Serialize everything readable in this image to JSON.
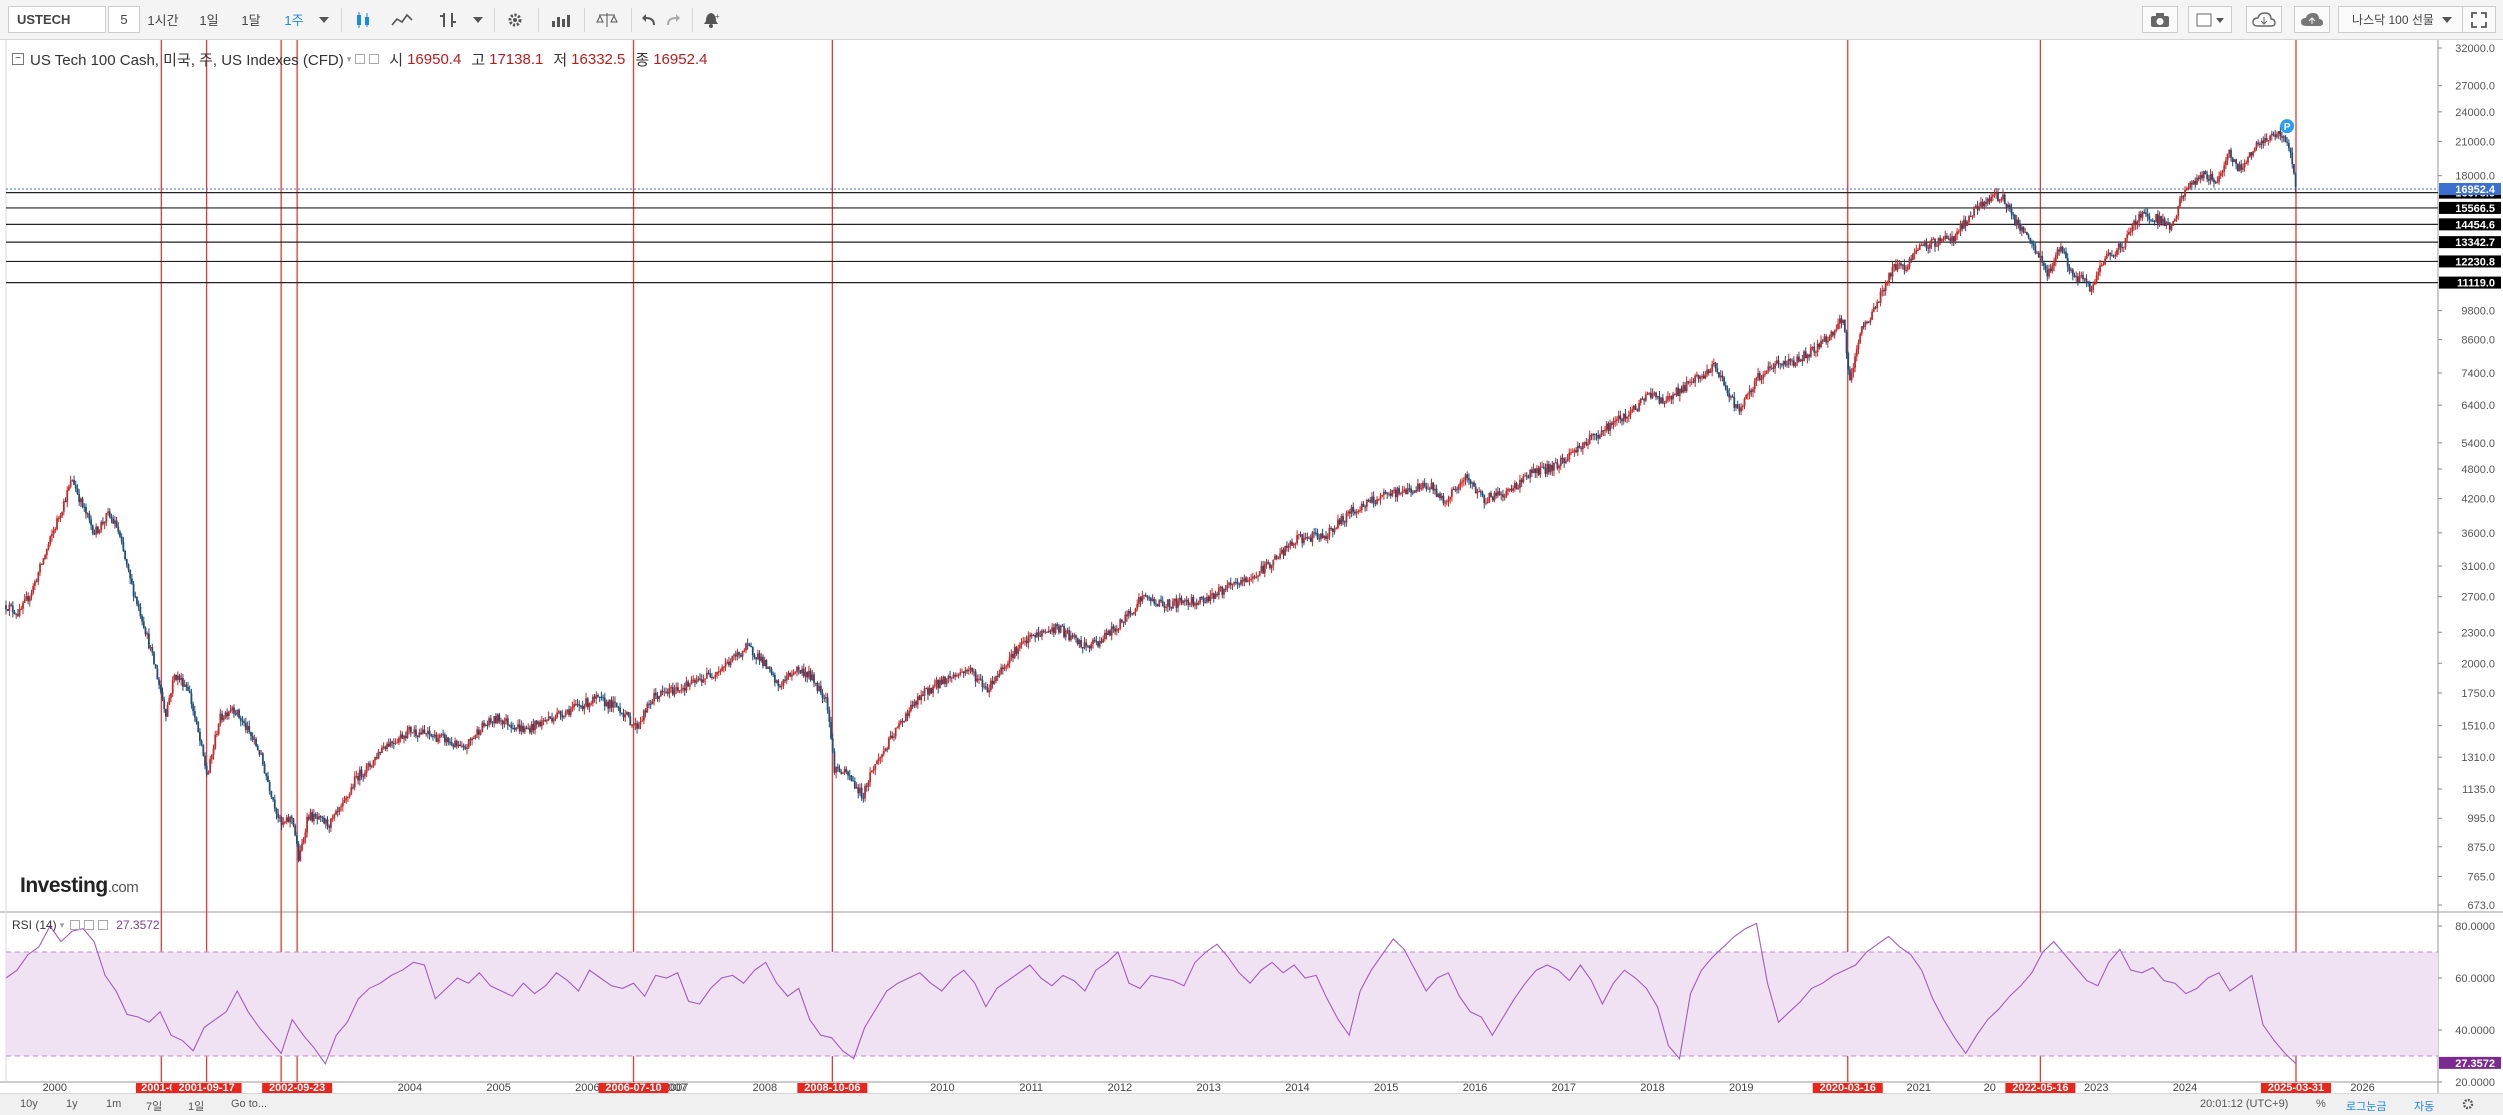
{
  "toolbar": {
    "symbol": "USTECH",
    "interval_value": "5",
    "timeframes": [
      "1시간",
      "1일",
      "1달",
      "1주"
    ],
    "active_timeframe": "1주",
    "contract_label": "나스닥 100 선물",
    "icons": [
      "candles-icon",
      "line-chart-icon",
      "dropdown-caret-icon",
      "indicators-icon",
      "dropdown-caret-icon",
      "settings-gear-icon",
      "bar-compare-icon",
      "scale-icon",
      "undo-icon",
      "redo-icon",
      "alert-bell-icon"
    ],
    "right_icons": [
      "camera-icon",
      "layout-square-icon",
      "dropdown-caret-icon",
      "cloud-load-icon",
      "cloud-save-icon",
      "dropdown-caret-icon",
      "fullscreen-icon"
    ]
  },
  "legend": {
    "name": "US Tech 100 Cash, 미국, 주, US Indexes (CFD)",
    "open_label": "시",
    "open": "16950.4",
    "high_label": "고",
    "high": "17138.1",
    "low_label": "저",
    "low": "16332.5",
    "close_label": "종",
    "close": "16952.4"
  },
  "logo": {
    "brand": "Investing",
    "domain": ".com"
  },
  "rsi_legend": {
    "name": "RSI (14)",
    "value": "27.3572"
  },
  "colors": {
    "up_candle": "#c62828",
    "down_candle": "#1f4e79",
    "vertical_lines": "#e53935",
    "rsi_line": "#a05cc0",
    "rsi_band": "#f1e2f3",
    "last_price_tag": "#3d6fd1",
    "level_tag": "#000000",
    "rsi_tag": "#7b2a8f"
  },
  "chart_data": [
    {
      "type": "line",
      "subtype": "candlestick",
      "title": "US Tech 100 Cash, 미국, 주, US Indexes (CFD)",
      "y_scale": "log",
      "ylim": [
        673,
        32000
      ],
      "xlim": [
        1999.45,
        2026.85
      ],
      "ytick_labels": [
        "32000.0",
        "27000.0",
        "24000.0",
        "21000.0",
        "18000.0",
        "9800.0",
        "8600.0",
        "7400.0",
        "6400.0",
        "5400.0",
        "4800.0",
        "4200.0",
        "3600.0",
        "3100.0",
        "2700.0",
        "2300.0",
        "2000.0",
        "1750.0",
        "1510.0",
        "1310.0",
        "1135.0",
        "995.0",
        "875.0",
        "765.0",
        "673.0"
      ],
      "ytick_values": [
        32000,
        27000,
        24000,
        21000,
        18000,
        9800,
        8600,
        7400,
        6400,
        5400,
        4800,
        4200,
        3600,
        3100,
        2700,
        2300,
        2000,
        1750,
        1510,
        1310,
        1135,
        995,
        875,
        765,
        673
      ],
      "year_labels": [
        "2000",
        "2004",
        "2005",
        "2006",
        "2007",
        "2008",
        "2009",
        "2010",
        "2011",
        "2012",
        "2013",
        "2014",
        "2015",
        "2016",
        "2017",
        "2018",
        "2019",
        "2021",
        "2023",
        "2024",
        "2026"
      ],
      "year_values": [
        2000,
        2004,
        2005,
        2006,
        2007,
        2008,
        2009,
        2010,
        2011,
        2012,
        2013,
        2014,
        2015,
        2016,
        2017,
        2018,
        2019,
        2021,
        2023,
        2024,
        2026
      ],
      "price_path": [
        [
          1999.45,
          2600
        ],
        [
          1999.6,
          2500
        ],
        [
          1999.75,
          2800
        ],
        [
          1999.9,
          3300
        ],
        [
          2000.05,
          3900
        ],
        [
          2000.2,
          4600
        ],
        [
          2000.3,
          4100
        ],
        [
          2000.45,
          3600
        ],
        [
          2000.6,
          3900
        ],
        [
          2000.7,
          3700
        ],
        [
          2000.85,
          2900
        ],
        [
          2001.0,
          2400
        ],
        [
          2001.15,
          1900
        ],
        [
          2001.25,
          1600
        ],
        [
          2001.35,
          1900
        ],
        [
          2001.5,
          1800
        ],
        [
          2001.6,
          1500
        ],
        [
          2001.72,
          1200
        ],
        [
          2001.85,
          1550
        ],
        [
          2002.0,
          1650
        ],
        [
          2002.15,
          1500
        ],
        [
          2002.3,
          1350
        ],
        [
          2002.45,
          1100
        ],
        [
          2002.55,
          960
        ],
        [
          2002.68,
          1000
        ],
        [
          2002.75,
          820
        ],
        [
          2002.85,
          1010
        ],
        [
          2003.0,
          980
        ],
        [
          2003.1,
          970
        ],
        [
          2003.25,
          1050
        ],
        [
          2003.4,
          1200
        ],
        [
          2003.55,
          1260
        ],
        [
          2003.7,
          1380
        ],
        [
          2003.85,
          1420
        ],
        [
          2004.0,
          1480
        ],
        [
          2004.2,
          1450
        ],
        [
          2004.4,
          1420
        ],
        [
          2004.6,
          1350
        ],
        [
          2004.8,
          1500
        ],
        [
          2005.0,
          1560
        ],
        [
          2005.3,
          1480
        ],
        [
          2005.6,
          1570
        ],
        [
          2005.9,
          1650
        ],
        [
          2006.1,
          1700
        ],
        [
          2006.35,
          1640
        ],
        [
          2006.55,
          1500
        ],
        [
          2006.75,
          1720
        ],
        [
          2007.0,
          1780
        ],
        [
          2007.2,
          1830
        ],
        [
          2007.5,
          1950
        ],
        [
          2007.8,
          2150
        ],
        [
          2007.95,
          2050
        ],
        [
          2008.15,
          1800
        ],
        [
          2008.35,
          1950
        ],
        [
          2008.5,
          1900
        ],
        [
          2008.7,
          1700
        ],
        [
          2008.78,
          1250
        ],
        [
          2008.95,
          1200
        ],
        [
          2009.1,
          1100
        ],
        [
          2009.2,
          1230
        ],
        [
          2009.4,
          1400
        ],
        [
          2009.6,
          1600
        ],
        [
          2009.8,
          1750
        ],
        [
          2010.0,
          1850
        ],
        [
          2010.3,
          1950
        ],
        [
          2010.5,
          1780
        ],
        [
          2010.8,
          2100
        ],
        [
          2011.0,
          2250
        ],
        [
          2011.3,
          2350
        ],
        [
          2011.6,
          2150
        ],
        [
          2011.75,
          2200
        ],
        [
          2012.0,
          2380
        ],
        [
          2012.25,
          2700
        ],
        [
          2012.5,
          2600
        ],
        [
          2012.75,
          2650
        ],
        [
          2012.9,
          2650
        ],
        [
          2013.2,
          2800
        ],
        [
          2013.5,
          2950
        ],
        [
          2013.75,
          3200
        ],
        [
          2014.0,
          3500
        ],
        [
          2014.3,
          3550
        ],
        [
          2014.6,
          3950
        ],
        [
          2014.9,
          4200
        ],
        [
          2015.2,
          4350
        ],
        [
          2015.5,
          4450
        ],
        [
          2015.65,
          4150
        ],
        [
          2015.9,
          4600
        ],
        [
          2016.1,
          4200
        ],
        [
          2016.4,
          4350
        ],
        [
          2016.6,
          4700
        ],
        [
          2016.9,
          4850
        ],
        [
          2017.2,
          5350
        ],
        [
          2017.5,
          5800
        ],
        [
          2017.8,
          6300
        ],
        [
          2018.0,
          6800
        ],
        [
          2018.1,
          6500
        ],
        [
          2018.4,
          7000
        ],
        [
          2018.7,
          7600
        ],
        [
          2018.85,
          6800
        ],
        [
          2018.98,
          6200
        ],
        [
          2019.2,
          7300
        ],
        [
          2019.4,
          7700
        ],
        [
          2019.6,
          7800
        ],
        [
          2019.8,
          8200
        ],
        [
          2020.05,
          8900
        ],
        [
          2020.15,
          9500
        ],
        [
          2020.22,
          7000
        ],
        [
          2020.35,
          8900
        ],
        [
          2020.55,
          10300
        ],
        [
          2020.7,
          11800
        ],
        [
          2020.85,
          12000
        ],
        [
          2021.0,
          12900
        ],
        [
          2021.15,
          13300
        ],
        [
          2021.4,
          13700
        ],
        [
          2021.6,
          15200
        ],
        [
          2021.85,
          16500
        ],
        [
          2021.95,
          16300
        ],
        [
          2022.1,
          14500
        ],
        [
          2022.3,
          13000
        ],
        [
          2022.45,
          11500
        ],
        [
          2022.6,
          13200
        ],
        [
          2022.75,
          11200
        ],
        [
          2022.85,
          11300
        ],
        [
          2022.95,
          10800
        ],
        [
          2023.1,
          12400
        ],
        [
          2023.3,
          13200
        ],
        [
          2023.5,
          15200
        ],
        [
          2023.75,
          14700
        ],
        [
          2023.85,
          14300
        ],
        [
          2024.0,
          16900
        ],
        [
          2024.2,
          18100
        ],
        [
          2024.35,
          17500
        ],
        [
          2024.5,
          20000
        ],
        [
          2024.6,
          18500
        ],
        [
          2024.8,
          20600
        ],
        [
          2025.0,
          21500
        ],
        [
          2025.1,
          21700
        ],
        [
          2025.18,
          20200
        ],
        [
          2025.25,
          16952
        ]
      ],
      "markers": [
        {
          "label": "P",
          "x": 2025.15,
          "y": 22500
        }
      ],
      "vertical_lines": [
        {
          "x": 2001.2,
          "label": "2001-03"
        },
        {
          "x": 2001.71,
          "label": "2001-09-17"
        },
        {
          "x": 2002.55,
          "label": "20"
        },
        {
          "x": 2002.73,
          "label": "2002-09-23"
        },
        {
          "x": 2006.52,
          "label": "2006-07-10"
        },
        {
          "x": 2008.76,
          "label": "2008-10-06"
        },
        {
          "x": 2020.2,
          "label": "2020-03-16"
        },
        {
          "x": 2022.37,
          "label": "2022-05-16"
        },
        {
          "x": 2025.25,
          "label": "2025-03-31"
        }
      ],
      "extra_date_label": {
        "label": "20",
        "x": 2021.8
      },
      "partial_year_labels": [
        {
          "label": "2",
          "x": 2001.98
        },
        {
          "label": "3",
          "x": 2002.98
        },
        {
          "label": "2007",
          "x": 2006.98
        }
      ],
      "horizontal_levels": [
        "16678.0",
        "15566.5",
        "14454.6",
        "13342.7",
        "12230.8",
        "11119.0"
      ],
      "horizontal_level_values": [
        16678,
        15566.5,
        14454.6,
        13342.7,
        12230.8,
        11119
      ],
      "last_price": {
        "value": 16952.4,
        "label": "16952.4"
      }
    },
    {
      "type": "line",
      "title": "RSI (14)",
      "ylim": [
        20,
        85
      ],
      "ytick_labels": [
        "80.0000",
        "60.0000",
        "40.0000",
        "20.0000"
      ],
      "ytick_values": [
        80,
        60,
        40,
        20
      ],
      "band": [
        30,
        70
      ],
      "last_value": {
        "value": 27.3572,
        "label": "27.3572"
      },
      "series": [
        {
          "values": [
            60,
            63,
            69,
            72,
            80,
            74,
            78,
            79,
            74,
            61,
            55,
            46,
            45,
            43,
            47,
            38,
            36,
            32,
            41,
            44,
            47,
            55,
            47,
            41,
            36,
            31,
            44,
            38,
            33,
            27,
            38,
            43,
            52,
            56,
            58,
            61,
            63,
            66,
            65,
            52,
            56,
            60,
            58,
            62,
            57,
            55,
            53,
            58,
            54,
            57,
            62,
            59,
            55,
            63,
            60,
            57,
            56,
            58,
            53,
            61,
            60,
            62,
            51,
            50,
            56,
            60,
            61,
            58,
            63,
            66,
            58,
            53,
            56,
            44,
            38,
            37,
            32,
            29,
            41,
            48,
            55,
            58,
            60,
            62,
            58,
            55,
            60,
            63,
            58,
            49,
            56,
            59,
            62,
            65,
            60,
            57,
            61,
            59,
            55,
            63,
            66,
            70,
            58,
            56,
            61,
            60,
            59,
            57,
            66,
            70,
            73,
            68,
            62,
            58,
            63,
            66,
            62,
            65,
            60,
            61,
            52,
            44,
            38,
            55,
            63,
            69,
            75,
            71,
            63,
            55,
            60,
            62,
            53,
            47,
            45,
            38,
            45,
            52,
            58,
            63,
            65,
            63,
            59,
            65,
            59,
            50,
            58,
            63,
            60,
            56,
            49,
            34,
            29,
            54,
            63,
            68,
            72,
            76,
            79,
            81,
            58,
            43,
            47,
            51,
            56,
            58,
            61,
            63,
            65,
            70,
            73,
            76,
            72,
            69,
            63,
            52,
            44,
            37,
            31,
            38,
            44,
            48,
            53,
            57,
            62,
            70,
            74,
            69,
            64,
            59,
            57,
            66,
            71,
            63,
            62,
            64,
            59,
            58,
            54,
            56,
            60,
            62,
            55,
            58,
            61,
            42,
            36,
            31,
            27
          ]
        }
      ]
    }
  ],
  "bottombar": {
    "ranges": [
      "10y",
      "1y",
      "1m",
      "7일",
      "1일"
    ],
    "goto": "Go to...",
    "time": "20:01:12 (UTC+9)",
    "percent": "%",
    "log": "로그눈금",
    "auto": "자동"
  }
}
